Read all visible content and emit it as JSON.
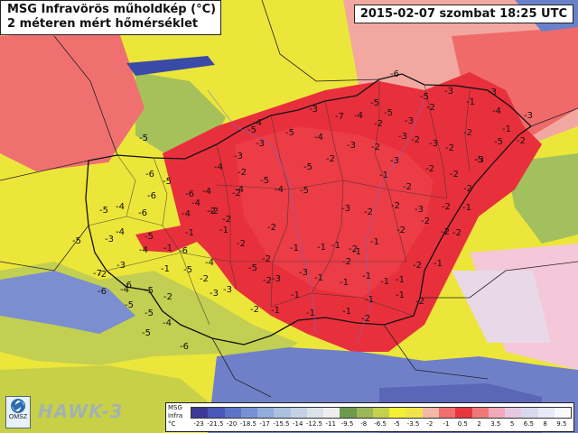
{
  "title_line1": "MSG Infravörös műholdkép (°C)",
  "title_line2": "2 méteren mért hőmérséklet",
  "datetime": "2015-02-07 szombat 18:25 UTC",
  "logo": "OMSZ",
  "brand": "HAWK-3",
  "legend": {
    "label": [
      "MSG",
      "Infra",
      "°C"
    ],
    "ticks": [
      "-23",
      "-21.5",
      "-20",
      "-18.5",
      "-17",
      "-15.5",
      "-14",
      "-12.5",
      "-11",
      "-9.5",
      "-8",
      "-6.5",
      "-5",
      "-3.5",
      "-2",
      "-1",
      "0.5",
      "2",
      "3.5",
      "5",
      "6.5",
      "8",
      "9.5"
    ],
    "colors": [
      "#3b3a98",
      "#4a56b8",
      "#5c74c8",
      "#7692d4",
      "#92acdc",
      "#aec0e0",
      "#c6d2e4",
      "#dce2ea",
      "#eeeef0",
      "#6e9a4e",
      "#9cb85a",
      "#c4d24e",
      "#f4f036",
      "#f0e44a",
      "#f4b8a8",
      "#f06e6e",
      "#e8363e",
      "#f07878",
      "#f4a8bc",
      "#e8c8e0",
      "#d8d8f0",
      "#e8e8f8",
      "#f8f8ff"
    ]
  },
  "colors": {
    "red": "#e8303c",
    "light_red": "#f06a6a",
    "pink": "#f2a8a8",
    "yellow": "#f0ec34",
    "olive": "#9cbc5c",
    "blue": "#6a80c8",
    "dark_blue": "#3a4aa8",
    "border": "#111111"
  },
  "temperature_labels": [
    {
      "t": "-6"
    },
    {
      "t": "-5"
    },
    {
      "t": "-3"
    },
    {
      "t": "-3"
    },
    {
      "t": "-1"
    },
    {
      "t": "-2"
    },
    {
      "t": "-3"
    },
    {
      "t": "-4"
    },
    {
      "t": "-3"
    },
    {
      "t": "-7"
    },
    {
      "t": "-5"
    },
    {
      "t": "-4"
    },
    {
      "t": "-5"
    },
    {
      "t": "-2"
    },
    {
      "t": "-3"
    },
    {
      "t": "-2"
    },
    {
      "t": "-3"
    },
    {
      "t": "-2"
    },
    {
      "t": "-2"
    },
    {
      "t": "-1"
    },
    {
      "t": "-2"
    },
    {
      "t": "-3"
    },
    {
      "t": "-2"
    },
    {
      "t": "-2"
    },
    {
      "t": "-3"
    },
    {
      "t": "-2"
    },
    {
      "t": "-3"
    },
    {
      "t": "-2"
    },
    {
      "t": "-3"
    },
    {
      "t": "-1"
    },
    {
      "t": "-2"
    },
    {
      "t": "-4"
    },
    {
      "t": "-5"
    },
    {
      "t": "-5"
    },
    {
      "t": "-5"
    },
    {
      "t": "-4"
    },
    {
      "t": "-4"
    },
    {
      "t": "-4"
    },
    {
      "t": "-4"
    },
    {
      "t": "-6"
    },
    {
      "t": "-5"
    },
    {
      "t": "-3"
    },
    {
      "t": "-5"
    },
    {
      "t": "-4"
    },
    {
      "t": "-5"
    },
    {
      "t": "-2"
    },
    {
      "t": "-3"
    },
    {
      "t": "-2"
    },
    {
      "t": "-2"
    },
    {
      "t": "-3"
    },
    {
      "t": "-2"
    },
    {
      "t": "-2"
    },
    {
      "t": "-1"
    },
    {
      "t": "-2"
    },
    {
      "t": "-1"
    },
    {
      "t": "-2"
    },
    {
      "t": "-1"
    },
    {
      "t": "-1"
    },
    {
      "t": "-2"
    },
    {
      "t": "-2"
    },
    {
      "t": "-2"
    },
    {
      "t": "-1"
    },
    {
      "t": "-2"
    },
    {
      "t": "-1"
    },
    {
      "t": "-5"
    },
    {
      "t": "-4"
    },
    {
      "t": "-6"
    },
    {
      "t": "-4"
    },
    {
      "t": "-5"
    },
    {
      "t": "-3"
    },
    {
      "t": "-2"
    },
    {
      "t": "-3"
    },
    {
      "t": "-2"
    },
    {
      "t": "-1"
    },
    {
      "t": "-1"
    },
    {
      "t": "-1"
    },
    {
      "t": "-1"
    },
    {
      "t": "-2"
    },
    {
      "t": "-2"
    },
    {
      "t": "-1"
    },
    {
      "t": "-3"
    },
    {
      "t": "-2"
    },
    {
      "t": "-1"
    },
    {
      "t": "-1"
    },
    {
      "t": "-1"
    },
    {
      "t": "-1"
    },
    {
      "t": "-1"
    },
    {
      "t": "-3"
    },
    {
      "t": "-1"
    },
    {
      "t": "-1"
    },
    {
      "t": "-2"
    },
    {
      "t": "-7"
    },
    {
      "t": "-6"
    },
    {
      "t": "-5"
    },
    {
      "t": "-5"
    },
    {
      "t": "-5"
    },
    {
      "t": "-3"
    },
    {
      "t": "-3"
    },
    {
      "t": "-2"
    },
    {
      "t": "-2"
    },
    {
      "t": "-4"
    },
    {
      "t": "-6"
    },
    {
      "t": "-1"
    },
    {
      "t": "-1"
    },
    {
      "t": "-1"
    },
    {
      "t": "-2"
    },
    {
      "t": "-1"
    },
    {
      "t": "-2"
    },
    {
      "t": "-6"
    },
    {
      "t": "-5"
    },
    {
      "t": "-4"
    },
    {
      "t": "-5"
    },
    {
      "t": "-6"
    },
    {
      "t": "-4"
    },
    {
      "t": "-4"
    },
    {
      "t": "-6"
    },
    {
      "t": "-2"
    },
    {
      "t": "-2"
    },
    {
      "t": "-4"
    },
    {
      "t": "-2"
    },
    {
      "t": "-5"
    },
    {
      "t": "-6"
    },
    {
      "t": "-5"
    },
    {
      "t": "-5"
    },
    {
      "t": "-3"
    },
    {
      "t": "-4"
    },
    {
      "t": "-2"
    },
    {
      "t": "-2"
    },
    {
      "t": "-5"
    },
    {
      "t": "-5"
    }
  ]
}
